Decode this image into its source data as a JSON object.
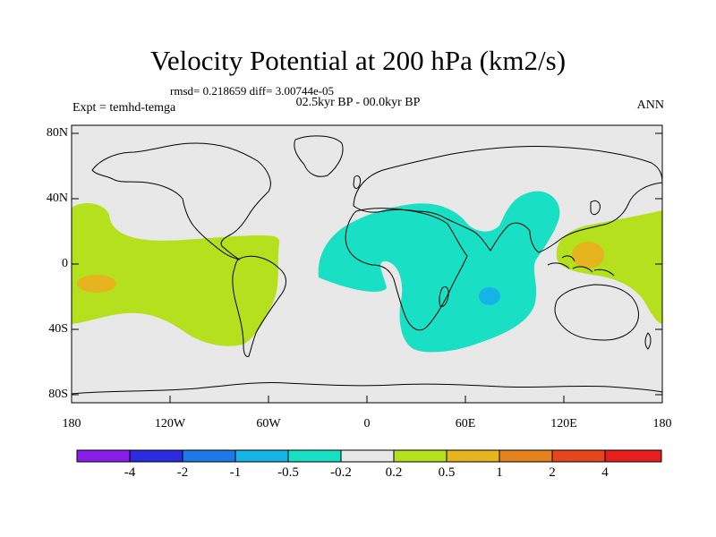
{
  "title": "Velocity Potential at 200 hPa (km2/s)",
  "stats_line": "rmsd= 0.218659 diff= 3.00744e-05",
  "period": "02.5kyr BP - 00.0kyr BP",
  "experiment": "Expt = temhd-temga",
  "season": "ANN",
  "lat_labels": [
    "80N",
    "40N",
    "0",
    "40S",
    "80S"
  ],
  "lon_labels": [
    "180",
    "120W",
    "60W",
    "0",
    "60E",
    "120E",
    "180"
  ],
  "colorbar": {
    "labels": [
      "-4",
      "-2",
      "-1",
      "-0.5",
      "-0.2",
      "0.2",
      "0.5",
      "1",
      "2",
      "4"
    ],
    "colors": [
      "#8a1ee6",
      "#2b2be0",
      "#1e78e6",
      "#16b4e6",
      "#19e0c4",
      "#e8e8e8",
      "#b4e01e",
      "#e6b41e",
      "#e6821e",
      "#e6461e",
      "#e61e1e"
    ]
  },
  "map_colors": {
    "background": "#e8e8e8",
    "neg_weak": "#19e0c4",
    "neg_mid": "#16b4e6",
    "pos_weak": "#b4e01e",
    "pos_mid": "#e6b41e",
    "coast": "#000000"
  }
}
